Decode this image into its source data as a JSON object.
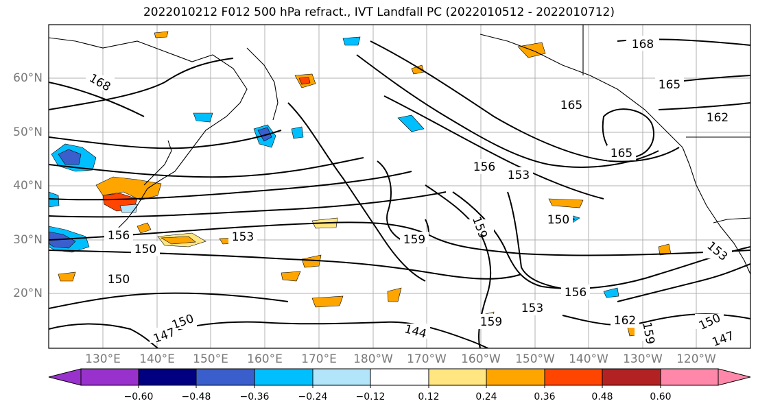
{
  "title": "2022010212 F012 500 hPa refract., IVT Landfall PC (2022010512 - 2022010712)",
  "map": {
    "lat_labels": [
      "60°N",
      "50°N",
      "40°N",
      "30°N",
      "20°N"
    ],
    "lon_labels": [
      "130°E",
      "140°E",
      "150°E",
      "160°E",
      "170°E",
      "180°W",
      "170°W",
      "160°W",
      "150°W",
      "140°W",
      "130°W",
      "120°W"
    ],
    "contour_labels": [
      "168",
      "165",
      "165",
      "165",
      "162",
      "159",
      "156",
      "153",
      "150",
      "153",
      "156",
      "150",
      "150",
      "153",
      "159",
      "159",
      "156",
      "153",
      "150",
      "147",
      "144",
      "162",
      "159",
      "150",
      "147",
      "168"
    ]
  },
  "colorbar": {
    "ticks": [
      "−0.60",
      "−0.48",
      "−0.36",
      "−0.24",
      "−0.12",
      "0.12",
      "0.24",
      "0.36",
      "0.48",
      "0.60"
    ],
    "colors": [
      "#9932cc",
      "#000080",
      "#3a5fcd",
      "#00bfff",
      "#b2e4fa",
      "#ffffff",
      "#ffe680",
      "#ffa500",
      "#ff4500",
      "#b22222",
      "#ff88aa"
    ]
  }
}
